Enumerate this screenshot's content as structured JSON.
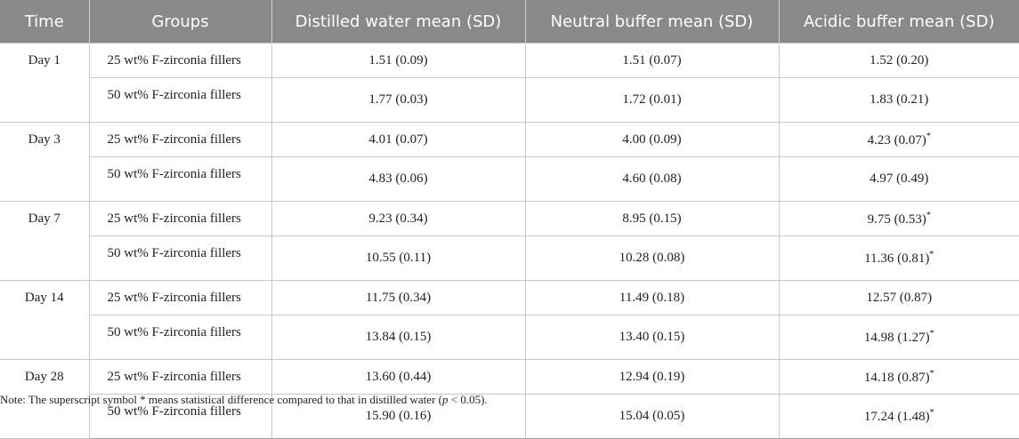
{
  "table": {
    "headers": [
      "Time",
      "Groups",
      "Distilled water mean (SD)",
      "Neutral buffer mean (SD)",
      "Acidic buffer mean (SD)"
    ],
    "groups": [
      {
        "time": "Day 1",
        "rows": [
          {
            "group": "25 wt% F-zirconia fillers",
            "cells": [
              {
                "text": "1.51 (0.09)"
              },
              {
                "text": "1.51 (0.07)"
              },
              {
                "text": "1.52 (0.20)"
              }
            ]
          },
          {
            "group": "50 wt% F-zirconia fillers",
            "cells": [
              {
                "text": "1.77 (0.03)"
              },
              {
                "text": "1.72 (0.01)"
              },
              {
                "text": "1.83 (0.21)"
              }
            ]
          }
        ]
      },
      {
        "time": "Day 3",
        "rows": [
          {
            "group": "25 wt% F-zirconia fillers",
            "cells": [
              {
                "text": "4.01 (0.07)"
              },
              {
                "text": "4.00 (0.09)"
              },
              {
                "text": "4.23 (0.07)",
                "sup": "*"
              }
            ]
          },
          {
            "group": "50 wt% F-zirconia fillers",
            "cells": [
              {
                "text": "4.83 (0.06)"
              },
              {
                "text": "4.60 (0.08)"
              },
              {
                "text": "4.97 (0.49)"
              }
            ]
          }
        ]
      },
      {
        "time": "Day 7",
        "rows": [
          {
            "group": "25 wt% F-zirconia fillers",
            "cells": [
              {
                "text": "9.23 (0.34)"
              },
              {
                "text": "8.95 (0.15)"
              },
              {
                "text": "9.75 (0.53)",
                "sup": "*"
              }
            ]
          },
          {
            "group": "50 wt% F-zirconia fillers",
            "cells": [
              {
                "text": "10.55 (0.11)"
              },
              {
                "text": "10.28 (0.08)"
              },
              {
                "text": "11.36 (0.81)",
                "sup": "*"
              }
            ]
          }
        ]
      },
      {
        "time": "Day 14",
        "rows": [
          {
            "group": "25 wt% F-zirconia fillers",
            "cells": [
              {
                "text": "11.75 (0.34)"
              },
              {
                "text": "11.49 (0.18)"
              },
              {
                "text": "12.57 (0.87)"
              }
            ]
          },
          {
            "group": "50 wt% F-zirconia fillers",
            "cells": [
              {
                "text": "13.84 (0.15)"
              },
              {
                "text": "13.40 (0.15)"
              },
              {
                "text": "14.98 (1.27)",
                "sup": "*"
              }
            ]
          }
        ]
      },
      {
        "time": "Day 28",
        "rows": [
          {
            "group": "25 wt% F-zirconia fillers",
            "cells": [
              {
                "text": "13.60 (0.44)"
              },
              {
                "text": "12.94 (0.19)"
              },
              {
                "text": "14.18 (0.87)",
                "sup": "*"
              }
            ]
          },
          {
            "group": "50 wt% F-zirconia fillers",
            "cells": [
              {
                "text": "15.90 (0.16)"
              },
              {
                "text": "15.04 (0.05)"
              },
              {
                "text": "17.24 (1.48)",
                "sup": "*"
              }
            ]
          }
        ]
      }
    ]
  },
  "note": {
    "before": "Note: The superscript symbol * means statistical difference compared to that in distilled water (",
    "italic": "p",
    "after": " < 0.05)."
  }
}
